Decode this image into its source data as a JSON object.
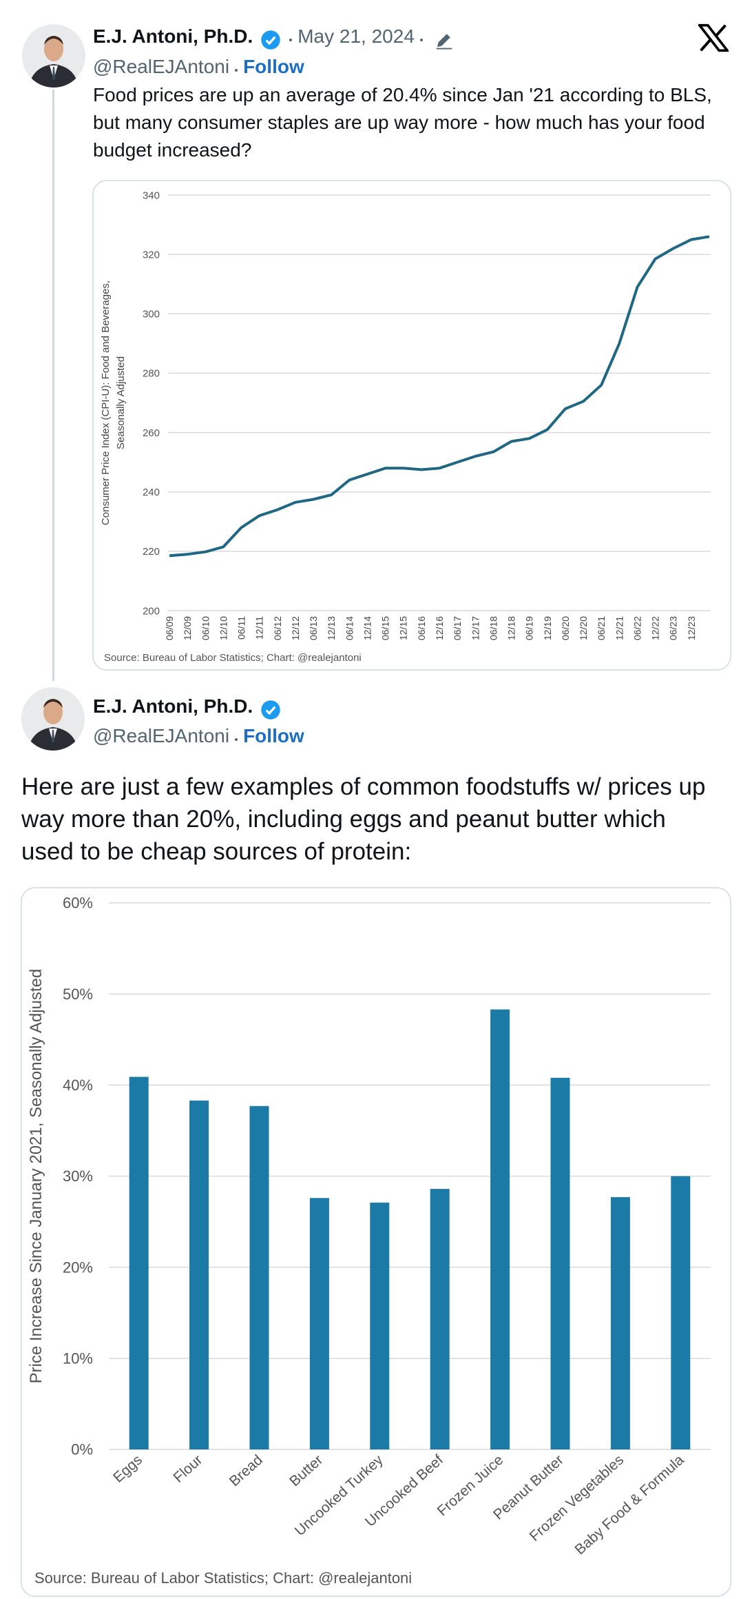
{
  "tweets": [
    {
      "author": "E.J. Antoni, Ph.D.",
      "handle": "@RealEJAntoni",
      "follow": "Follow",
      "date": "May 21, 2024",
      "text": "Food prices are up an average of 20.4% since Jan '21 according to BLS, but many consumer staples are up way more - how much has your food budget increased?"
    },
    {
      "author": "E.J. Antoni, Ph.D.",
      "handle": "@RealEJAntoni",
      "follow": "Follow",
      "text": "Here are just a few examples of common foodstuffs w/ prices up way more than 20%, including eggs and peanut butter which used to be cheap sources of protein:"
    }
  ],
  "chart_data": [
    {
      "type": "line",
      "ylabel": [
        "Consumer Price Index (CPI-U): Food and Beverages,",
        "Seasonally Adjusted"
      ],
      "source": "Source: Bureau of Labor Statistics; Chart: @realejantoni",
      "categories": [
        "06/09",
        "12/09",
        "06/10",
        "12/10",
        "06/11",
        "12/11",
        "06/12",
        "12/12",
        "06/13",
        "12/13",
        "06/14",
        "12/14",
        "06/15",
        "12/15",
        "06/16",
        "12/16",
        "06/17",
        "12/17",
        "06/18",
        "12/18",
        "06/19",
        "12/19",
        "06/20",
        "12/20",
        "06/21",
        "12/21",
        "06/22",
        "12/22",
        "06/23",
        "12/23",
        null
      ],
      "values": [
        218.5,
        219,
        219.8,
        221.5,
        228,
        232,
        234,
        236.5,
        237.5,
        239,
        244,
        246,
        248,
        248,
        247.5,
        248,
        250,
        252,
        253.5,
        257,
        258,
        261,
        268,
        270.5,
        276,
        290,
        309,
        318.5,
        322,
        325,
        326
      ],
      "color": "#1f6784",
      "ylim": [
        200,
        340
      ],
      "yticks": [
        200,
        220,
        240,
        260,
        280,
        300,
        320,
        340
      ],
      "grid": true
    },
    {
      "type": "bar",
      "ylabel": "Price Increase Since January 2021, Seasonally Adjusted",
      "source": "Source: Bureau of Labor Statistics; Chart: @realejantoni",
      "categories": [
        "Eggs",
        "Flour",
        "Bread",
        "Butter",
        "Uncooked Turkey",
        "Uncooked Beef",
        "Frozen Juice",
        "Peanut Butter",
        "Frozen Vegetables",
        "Baby Food & Formula"
      ],
      "values": [
        40.9,
        38.3,
        37.7,
        27.6,
        27.1,
        28.6,
        48.3,
        40.8,
        27.7,
        30.0
      ],
      "color": "#1b7ba6",
      "ylim": [
        0,
        60
      ],
      "yticks": [
        {
          "value": 0,
          "label": "0%"
        },
        {
          "value": 10,
          "label": "10%"
        },
        {
          "value": 20,
          "label": "20%"
        },
        {
          "value": 30,
          "label": "30%"
        },
        {
          "value": 40,
          "label": "40%"
        },
        {
          "value": 50,
          "label": "50%"
        },
        {
          "value": 60,
          "label": "60%"
        }
      ],
      "grid": true
    }
  ]
}
